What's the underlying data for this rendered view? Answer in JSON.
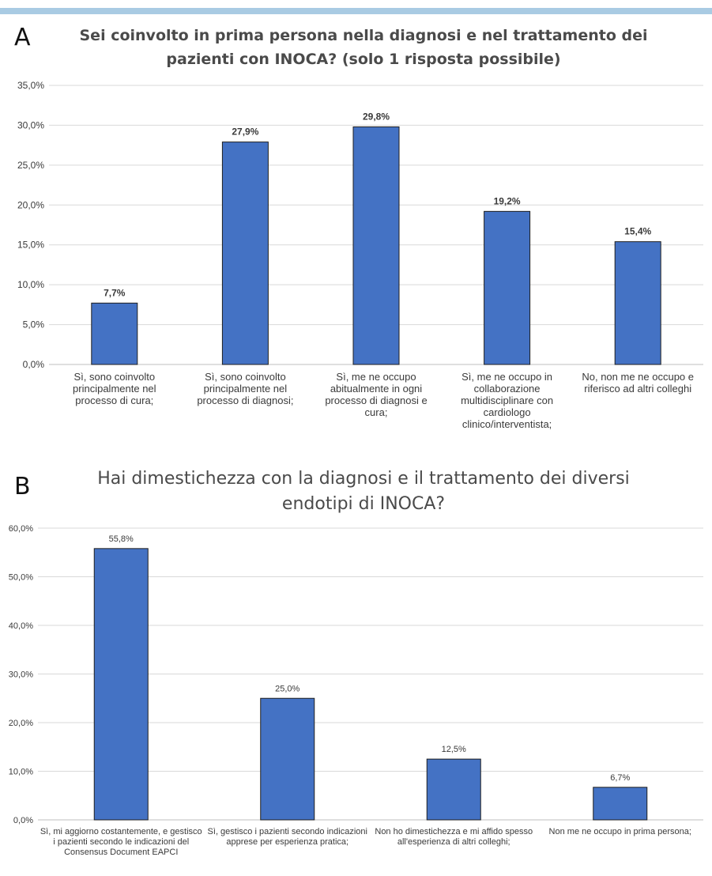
{
  "panels": {
    "a": {
      "letter": "A"
    },
    "b": {
      "letter": "B"
    }
  },
  "chart_data": [
    {
      "type": "bar",
      "title": "Sei coinvolto in prima persona nella diagnosi e nel trattamento dei pazienti con INOCA? (solo 1 risposta possibile)",
      "categories": [
        "Sì, sono coinvolto principalmente nel processo di cura;",
        "Sì, sono coinvolto principalmente nel processo di diagnosi;",
        "Sì, me ne occupo abitualmente in ogni processo di diagnosi e cura;",
        "Sì, me ne occupo in collaborazione multidisciplinare con cardiologo clinico/interventista;",
        "No, non me ne occupo e riferisco ad altri colleghi"
      ],
      "values": [
        7.7,
        27.9,
        29.8,
        19.2,
        15.4
      ],
      "value_labels": [
        "7,7%",
        "27,9%",
        "29,8%",
        "19,2%",
        "15,4%"
      ],
      "yticks": [
        "0,0%",
        "5,0%",
        "10,0%",
        "15,0%",
        "20,0%",
        "25,0%",
        "30,0%",
        "35,0%"
      ],
      "ylim": [
        0,
        35
      ],
      "grid": true,
      "bar_color": "#4472c4"
    },
    {
      "type": "bar",
      "title": "Hai dimestichezza con la diagnosi e il trattamento dei diversi endotipi di INOCA?",
      "categories": [
        "Sì, mi aggiorno costantemente, e gestisco i pazienti secondo le indicazioni del Consensus Document EAPCI",
        "Sì, gestisco i pazienti secondo indicazioni apprese per esperienza pratica;",
        "Non ho dimestichezza e mi affido spesso all'esperienza di altri colleghi;",
        "Non me ne occupo in prima persona;"
      ],
      "values": [
        55.8,
        25.0,
        12.5,
        6.7
      ],
      "value_labels": [
        "55,8%",
        "25,0%",
        "12,5%",
        "6,7%"
      ],
      "yticks": [
        "0,0%",
        "10,0%",
        "20,0%",
        "30,0%",
        "40,0%",
        "50,0%",
        "60,0%"
      ],
      "ylim": [
        0,
        60
      ],
      "grid": true,
      "bar_color": "#4472c4"
    }
  ]
}
